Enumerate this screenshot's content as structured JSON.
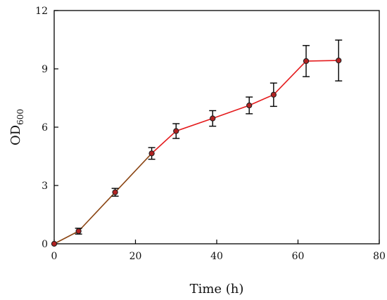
{
  "chart_data": {
    "type": "line",
    "title": "",
    "xlabel": "Time (h)",
    "ylabel_main": "OD",
    "ylabel_sub": "600",
    "xlim": [
      0,
      80
    ],
    "ylim": [
      0,
      12
    ],
    "xticks": [
      "0",
      "20",
      "40",
      "60",
      "80"
    ],
    "yticks": [
      "0",
      "3",
      "6",
      "9",
      "12"
    ],
    "grid": false,
    "legend": "none",
    "series": [
      {
        "x": [
          0,
          6,
          15,
          24,
          30,
          39,
          48,
          54,
          62,
          70
        ],
        "y": [
          0.0,
          0.65,
          2.65,
          4.65,
          5.8,
          6.45,
          7.12,
          7.67,
          9.4,
          9.43
        ],
        "error": [
          0.0,
          0.15,
          0.2,
          0.3,
          0.38,
          0.4,
          0.43,
          0.6,
          0.8,
          1.05
        ],
        "line_colors": [
          "#8B4513",
          "#8B4513",
          "#8B4513",
          "#E41A1C",
          "#E41A1C",
          "#E41A1C",
          "#E41A1C",
          "#E41A1C",
          "#E41A1C"
        ],
        "marker_fill": "#B22222",
        "marker_stroke": "#222222",
        "errorbar_color": "#000000"
      }
    ]
  }
}
